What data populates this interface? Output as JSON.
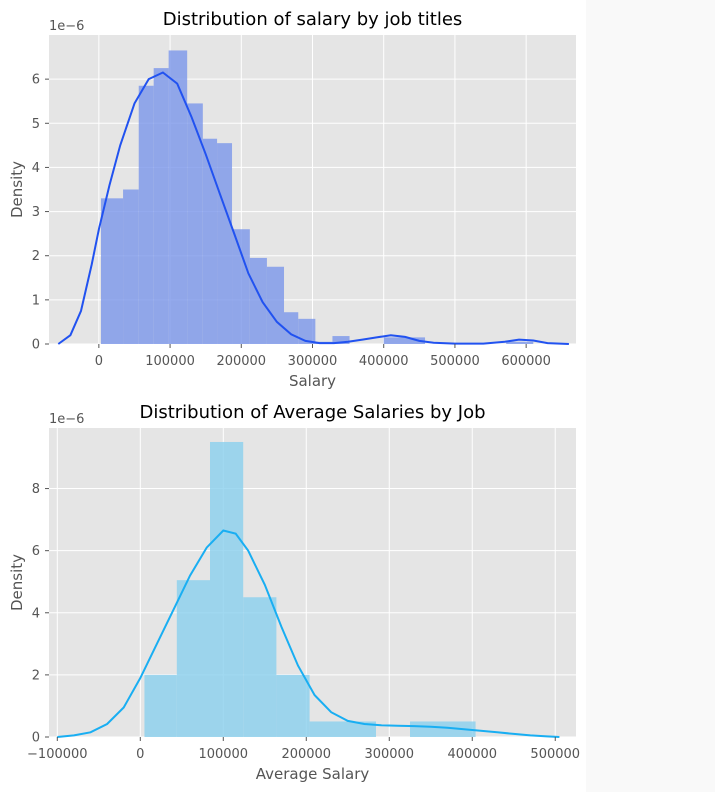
{
  "chart_data": [
    {
      "type": "histogram",
      "title": "Distribution of salary by job titles",
      "xlabel": "Salary",
      "ylabel": "Density",
      "y_offset_label": "1e−6",
      "xlim": [
        -70000,
        670000
      ],
      "ylim": [
        0,
        7e-06
      ],
      "xticks": [
        0,
        100000,
        200000,
        300000,
        400000,
        500000,
        600000
      ],
      "xtick_labels": [
        "0",
        "100000",
        "200000",
        "300000",
        "400000",
        "500000",
        "600000"
      ],
      "yticks": [
        0,
        1e-06,
        2e-06,
        3e-06,
        4e-06,
        5e-06,
        6e-06
      ],
      "ytick_labels": [
        "0",
        "1",
        "2",
        "3",
        "4",
        "5",
        "6"
      ],
      "grid": true,
      "bar_color": "#7b96ea",
      "kde_color": "#2152f0",
      "bins": [
        {
          "x0": 3000,
          "x1": 34000,
          "density": 3.3e-06
        },
        {
          "x0": 34000,
          "x1": 56000,
          "density": 3.5e-06
        },
        {
          "x0": 56000,
          "x1": 77000,
          "density": 5.85e-06
        },
        {
          "x0": 77000,
          "x1": 98000,
          "density": 6.25e-06
        },
        {
          "x0": 98000,
          "x1": 124000,
          "density": 6.65e-06
        },
        {
          "x0": 124000,
          "x1": 146000,
          "density": 5.45e-06
        },
        {
          "x0": 146000,
          "x1": 166000,
          "density": 4.65e-06
        },
        {
          "x0": 166000,
          "x1": 187000,
          "density": 4.55e-06
        },
        {
          "x0": 187000,
          "x1": 212000,
          "density": 2.6e-06
        },
        {
          "x0": 212000,
          "x1": 236000,
          "density": 1.95e-06
        },
        {
          "x0": 236000,
          "x1": 260000,
          "density": 1.75e-06
        },
        {
          "x0": 260000,
          "x1": 280000,
          "density": 7.2e-07
        },
        {
          "x0": 280000,
          "x1": 304000,
          "density": 5.7e-07
        },
        {
          "x0": 304000,
          "x1": 328000,
          "density": 5e-08
        },
        {
          "x0": 328000,
          "x1": 352000,
          "density": 1.8e-07
        },
        {
          "x0": 400000,
          "x1": 458000,
          "density": 1.5e-07
        },
        {
          "x0": 572000,
          "x1": 610000,
          "density": 5e-08
        }
      ],
      "kde": [
        [
          -57000,
          0
        ],
        [
          -40000,
          2e-07
        ],
        [
          -25000,
          7.5e-07
        ],
        [
          -10000,
          1.8e-06
        ],
        [
          0,
          2.6e-06
        ],
        [
          15000,
          3.6e-06
        ],
        [
          30000,
          4.5e-06
        ],
        [
          50000,
          5.45e-06
        ],
        [
          70000,
          6e-06
        ],
        [
          90000,
          6.15e-06
        ],
        [
          110000,
          5.9e-06
        ],
        [
          130000,
          5.15e-06
        ],
        [
          150000,
          4.3e-06
        ],
        [
          170000,
          3.4e-06
        ],
        [
          190000,
          2.5e-06
        ],
        [
          210000,
          1.6e-06
        ],
        [
          230000,
          9.5e-07
        ],
        [
          250000,
          5e-07
        ],
        [
          270000,
          2.2e-07
        ],
        [
          290000,
          7e-08
        ],
        [
          310000,
          2e-08
        ],
        [
          330000,
          2e-08
        ],
        [
          350000,
          5e-08
        ],
        [
          370000,
          1e-07
        ],
        [
          390000,
          1.5e-07
        ],
        [
          410000,
          2e-07
        ],
        [
          430000,
          1.6e-07
        ],
        [
          450000,
          7e-08
        ],
        [
          470000,
          3e-08
        ],
        [
          500000,
          1e-08
        ],
        [
          540000,
          1e-08
        ],
        [
          570000,
          5e-08
        ],
        [
          590000,
          1e-07
        ],
        [
          610000,
          8e-08
        ],
        [
          630000,
          2e-08
        ],
        [
          660000,
          0
        ]
      ]
    },
    {
      "type": "histogram",
      "title": "Distribution of Average Salaries by Job",
      "xlabel": "Average Salary",
      "ylabel": "Density",
      "y_offset_label": "1e−6",
      "xlim": [
        -110000,
        525000
      ],
      "ylim": [
        0,
        9.95e-06
      ],
      "xticks": [
        -100000,
        0,
        100000,
        200000,
        300000,
        400000,
        500000
      ],
      "xtick_labels": [
        "−100000",
        "0",
        "100000",
        "200000",
        "300000",
        "400000",
        "500000"
      ],
      "yticks": [
        0,
        2e-06,
        4e-06,
        6e-06,
        8e-06
      ],
      "ytick_labels": [
        "0",
        "2",
        "4",
        "6",
        "8"
      ],
      "grid": true,
      "bar_color": "#89cfee",
      "kde_color": "#19aef2",
      "bins": [
        {
          "x0": 5000,
          "x1": 44000,
          "density": 2e-06
        },
        {
          "x0": 44000,
          "x1": 84000,
          "density": 5.05e-06
        },
        {
          "x0": 84000,
          "x1": 124000,
          "density": 9.5e-06
        },
        {
          "x0": 124000,
          "x1": 164000,
          "density": 4.5e-06
        },
        {
          "x0": 164000,
          "x1": 204000,
          "density": 2e-06
        },
        {
          "x0": 204000,
          "x1": 284000,
          "density": 5e-07
        },
        {
          "x0": 325000,
          "x1": 404000,
          "density": 5e-07
        }
      ],
      "kde": [
        [
          -100000,
          0
        ],
        [
          -80000,
          5e-08
        ],
        [
          -60000,
          1.5e-07
        ],
        [
          -40000,
          4.2e-07
        ],
        [
          -20000,
          9.5e-07
        ],
        [
          0,
          1.9e-06
        ],
        [
          20000,
          3e-06
        ],
        [
          40000,
          4.1e-06
        ],
        [
          60000,
          5.2e-06
        ],
        [
          80000,
          6.1e-06
        ],
        [
          100000,
          6.65e-06
        ],
        [
          115000,
          6.55e-06
        ],
        [
          130000,
          6e-06
        ],
        [
          150000,
          4.9e-06
        ],
        [
          170000,
          3.55e-06
        ],
        [
          190000,
          2.3e-06
        ],
        [
          210000,
          1.35e-06
        ],
        [
          230000,
          8e-07
        ],
        [
          250000,
          5.2e-07
        ],
        [
          270000,
          4.2e-07
        ],
        [
          290000,
          3.8e-07
        ],
        [
          310000,
          3.6e-07
        ],
        [
          330000,
          3.5e-07
        ],
        [
          350000,
          3.3e-07
        ],
        [
          370000,
          3e-07
        ],
        [
          390000,
          2.5e-07
        ],
        [
          410000,
          2e-07
        ],
        [
          430000,
          1.5e-07
        ],
        [
          450000,
          1e-07
        ],
        [
          470000,
          5e-08
        ],
        [
          490000,
          2e-08
        ],
        [
          505000,
          0
        ]
      ]
    }
  ]
}
